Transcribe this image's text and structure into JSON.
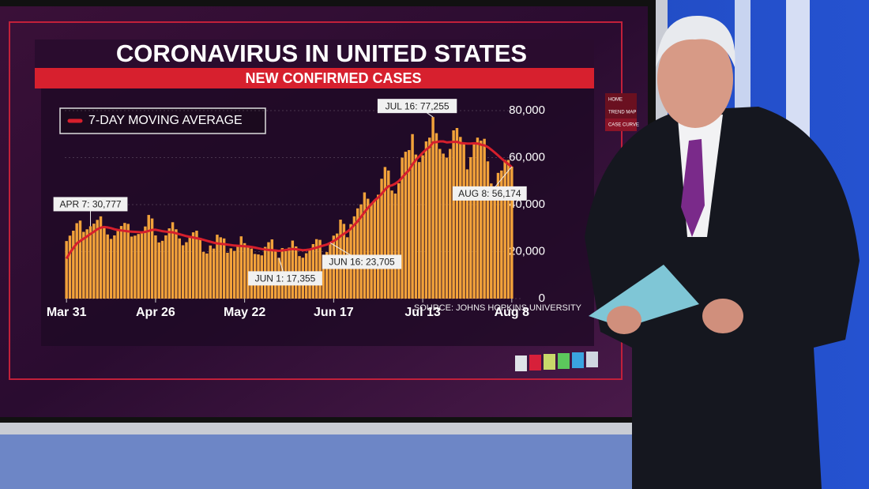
{
  "chart_data": {
    "type": "bar",
    "title": "CORONAVIRUS IN UNITED STATES",
    "subtitle": "NEW CONFIRMED CASES",
    "source": "SOURCE: JOHNS HOPKINS UNIVERSITY",
    "categories": [
      "Mar 31",
      null,
      null,
      null,
      null,
      null,
      null,
      null,
      null,
      null,
      null,
      null,
      null,
      null,
      null,
      null,
      null,
      null,
      null,
      null,
      null,
      null,
      null,
      null,
      null,
      null,
      "Apr 26",
      null,
      null,
      null,
      null,
      null,
      null,
      null,
      null,
      null,
      null,
      null,
      null,
      null,
      null,
      null,
      null,
      null,
      null,
      null,
      null,
      null,
      null,
      null,
      null,
      null,
      "May 22",
      null,
      null,
      null,
      null,
      null,
      null,
      null,
      null,
      null,
      null,
      null,
      null,
      null,
      null,
      null,
      null,
      null,
      null,
      null,
      null,
      null,
      null,
      null,
      null,
      null,
      "Jun 17",
      null,
      null,
      null,
      null,
      null,
      null,
      null,
      null,
      null,
      null,
      null,
      null,
      null,
      null,
      null,
      null,
      null,
      null,
      null,
      null,
      null,
      null,
      null,
      null,
      null,
      "Jul 13",
      null,
      null,
      null,
      null,
      null,
      null,
      null,
      null,
      null,
      null,
      null,
      null,
      null,
      null,
      null,
      null,
      null,
      null,
      null,
      null,
      null,
      null,
      null,
      null,
      null,
      "Aug 8"
    ],
    "values": [
      24500,
      26800,
      28900,
      32100,
      33200,
      28400,
      29500,
      30777,
      31900,
      33500,
      35000,
      30800,
      27300,
      25400,
      26900,
      29200,
      30900,
      32200,
      31800,
      26400,
      26800,
      27500,
      28600,
      30700,
      35600,
      34100,
      26900,
      23900,
      24600,
      26900,
      29900,
      32500,
      29500,
      25600,
      22700,
      24000,
      26100,
      28200,
      28900,
      25800,
      19900,
      19200,
      22600,
      21300,
      27200,
      26100,
      25600,
      19500,
      21400,
      20300,
      22600,
      26500,
      23600,
      22400,
      21300,
      19000,
      18800,
      18400,
      22000,
      24000,
      25200,
      20800,
      17355,
      21500,
      20200,
      21700,
      24700,
      22200,
      18100,
      17400,
      19300,
      21200,
      23200,
      25300,
      25000,
      18700,
      19800,
      23705,
      26800,
      27700,
      33600,
      31800,
      26100,
      31700,
      35000,
      38400,
      40100,
      45200,
      42500,
      40500,
      41900,
      44200,
      51000,
      56000,
      54500,
      46000,
      44700,
      49100,
      60000,
      62500,
      63200,
      70000,
      61300,
      58100,
      61000,
      66900,
      68500,
      77255,
      70400,
      63700,
      61700,
      60000,
      63700,
      71600,
      72600,
      68800,
      66000,
      55000,
      60200,
      66000,
      68500,
      67200,
      68000,
      58400,
      49000,
      45900,
      53500,
      54500,
      59000,
      59000,
      56174
    ],
    "color": "#f2a23a",
    "moving_average": {
      "name": "7-DAY MOVING AVERAGE",
      "color": "#d61f2c",
      "values": [
        17000,
        19500,
        21500,
        23500,
        24500,
        25500,
        26500,
        27500,
        28500,
        29500,
        30200,
        30500,
        30300,
        30000,
        29500,
        29200,
        29000,
        28800,
        28600,
        28500,
        28400,
        28300,
        28200,
        28400,
        28800,
        29200,
        29300,
        29000,
        28700,
        28500,
        28300,
        28200,
        27800,
        27400,
        27000,
        26600,
        26300,
        26000,
        25700,
        25400,
        25000,
        24600,
        24200,
        23800,
        23500,
        23300,
        23200,
        23000,
        22800,
        22600,
        22500,
        22400,
        22300,
        22200,
        22000,
        21700,
        21400,
        21100,
        20900,
        20700,
        20600,
        20500,
        20300,
        20500,
        20700,
        20900,
        21100,
        21000,
        20800,
        20600,
        20700,
        20900,
        21300,
        21700,
        22200,
        22600,
        23000,
        23705,
        24500,
        25400,
        26600,
        27600,
        28500,
        29700,
        31300,
        32900,
        34800,
        36800,
        38600,
        40200,
        41800,
        43000,
        44600,
        46400,
        47800,
        48200,
        48900,
        50000,
        51500,
        53200,
        54700,
        57100,
        59000,
        60500,
        62100,
        63400,
        64500,
        66500,
        66600,
        66900,
        66900,
        66500,
        66600,
        66700,
        66700,
        66200,
        66100,
        66000,
        66000,
        66100,
        66000,
        65500,
        65200,
        64500,
        63400,
        62200,
        60900,
        59600,
        58400,
        57200,
        56000
      ]
    },
    "annotations": [
      "APR 7: 30,777",
      "JUN 1: 17,355",
      "JUN 16: 23,705",
      "JUL 16: 77,255",
      "AUG 8: 56,174"
    ],
    "ylim": [
      0,
      80000
    ],
    "yticks": [
      0,
      {
        "value": 20000,
        "label": "20,000"
      },
      {
        "value": 40000,
        "label": "40,000"
      },
      {
        "value": 60000,
        "label": "60,000"
      },
      {
        "value": 80000,
        "label": "80,000"
      }
    ],
    "grid": true
  },
  "side_menu": [
    "HOME",
    "TREND MAP",
    "CASE CURVE"
  ]
}
